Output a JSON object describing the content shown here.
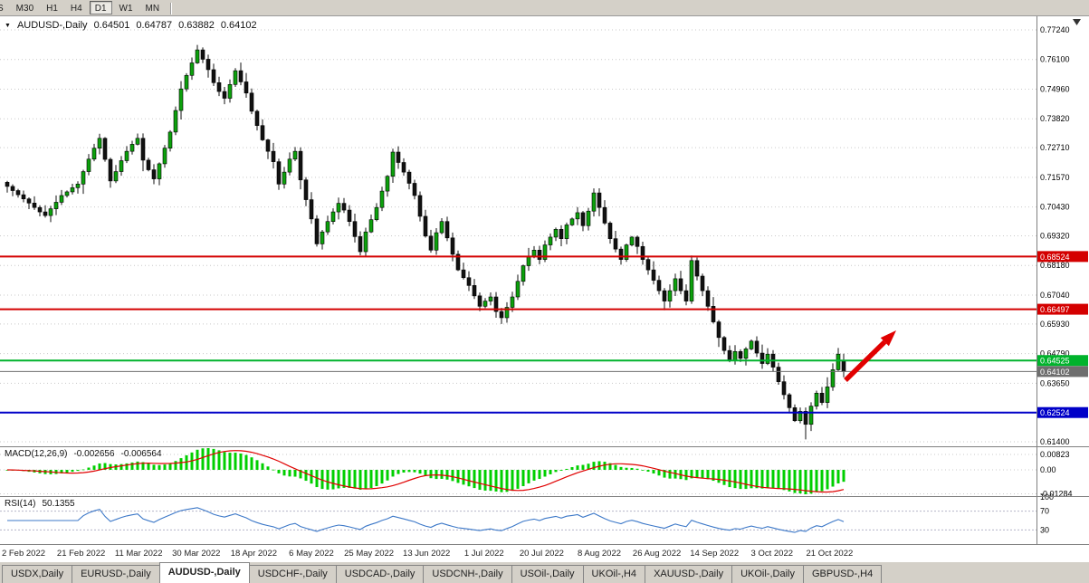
{
  "toolbar": {
    "timeframes": [
      "S",
      "M30",
      "H1",
      "H4",
      "D1",
      "W1",
      "MN"
    ],
    "active_timeframe": "D1"
  },
  "chart": {
    "title": {
      "marker_icon": "▼",
      "symbol": "AUDUSD-,Daily",
      "open": "0.64501",
      "high": "0.64787",
      "low": "0.63882",
      "close": "0.64102"
    },
    "price_axis": [
      "0.77240",
      "0.76100",
      "0.74960",
      "0.73820",
      "0.72710",
      "0.71570",
      "0.70430",
      "0.69320",
      "0.68180",
      "0.67040",
      "0.65930",
      "0.64790",
      "0.63650",
      "0.62510",
      "0.61400"
    ],
    "time_axis": [
      "2 Feb 2022",
      "21 Feb 2022",
      "11 Mar 2022",
      "30 Mar 2022",
      "18 Apr 2022",
      "6 May 2022",
      "25 May 2022",
      "13 Jun 2022",
      "1 Jul 2022",
      "20 Jul 2022",
      "8 Aug 2022",
      "26 Aug 2022",
      "14 Sep 2022",
      "3 Oct 2022",
      "21 Oct 2022"
    ],
    "levels": [
      {
        "label": "0.68524",
        "price": 0.68524,
        "color": "#d40000",
        "tag_text": "#ffffff",
        "is_current_price": false
      },
      {
        "label": "0.66497",
        "price": 0.66497,
        "color": "#d40000",
        "tag_text": "#ffffff",
        "is_current_price": false
      },
      {
        "label": "0.64525",
        "price": 0.64525,
        "color": "#00b32c",
        "tag_text": "#ffffff",
        "is_current_price": false
      },
      {
        "label": "0.64102",
        "price": 0.64102,
        "color": "#6e6e6e",
        "tag_text": "#ffffff",
        "is_current_price": true
      },
      {
        "label": "0.62524",
        "price": 0.62524,
        "color": "#0000c8",
        "tag_text": "#ffffff",
        "is_current_price": false
      }
    ],
    "macd": {
      "label": "MACD(12,26,9)",
      "value_main": "-0.002656",
      "value_signal": "-0.006564",
      "axis": [
        "0.00823",
        "0.00",
        "-0.01284"
      ]
    },
    "rsi": {
      "label": "RSI(14)",
      "value": "50.1355",
      "axis": [
        "100",
        "70",
        "30"
      ],
      "levels": [
        70,
        30
      ]
    },
    "annotation_arrow": {
      "color": "#e10000"
    }
  },
  "chart_data": {
    "type": "candlestick",
    "symbol": "AUDUSD",
    "timeframe": "Daily",
    "title": "AUDUSD-,Daily",
    "x_range": [
      "2 Feb 2022",
      "26 Oct 2022"
    ],
    "y_range": [
      0.614,
      0.7724
    ],
    "first_open": 0.7138,
    "closes": [
      0.7122,
      0.7106,
      0.709,
      0.7074,
      0.7058,
      0.7041,
      0.7024,
      0.701,
      0.7036,
      0.7061,
      0.7087,
      0.7101,
      0.7117,
      0.7131,
      0.7179,
      0.7227,
      0.7269,
      0.7307,
      0.7226,
      0.7143,
      0.7179,
      0.7221,
      0.7257,
      0.7284,
      0.7307,
      0.7223,
      0.7186,
      0.7151,
      0.7209,
      0.7269,
      0.7331,
      0.7414,
      0.7497,
      0.7549,
      0.7597,
      0.7647,
      0.7611,
      0.7571,
      0.7521,
      0.7487,
      0.7461,
      0.7514,
      0.7567,
      0.7524,
      0.7481,
      0.7411,
      0.7356,
      0.7301,
      0.7257,
      0.7217,
      0.7131,
      0.7177,
      0.7227,
      0.7257,
      0.7147,
      0.7071,
      0.6997,
      0.6901,
      0.6947,
      0.6987,
      0.7024,
      0.7057,
      0.7031,
      0.6987,
      0.6929,
      0.6871,
      0.6947,
      0.6994,
      0.7041,
      0.7104,
      0.7161,
      0.7254,
      0.7214,
      0.7177,
      0.7134,
      0.7087,
      0.7007,
      0.6931,
      0.6877,
      0.6944,
      0.6987,
      0.6924,
      0.6861,
      0.6801,
      0.6771,
      0.6741,
      0.6701,
      0.6661,
      0.6681,
      0.6697,
      0.6641,
      0.6617,
      0.6657,
      0.6697,
      0.6757,
      0.6817,
      0.6851,
      0.6877,
      0.6841,
      0.6897,
      0.6927,
      0.6957,
      0.6921,
      0.6974,
      0.6997,
      0.7021,
      0.6971,
      0.7027,
      0.7097,
      0.7041,
      0.6981,
      0.6921,
      0.6881,
      0.6841,
      0.6897,
      0.6927,
      0.6891,
      0.6841,
      0.6801,
      0.6761,
      0.6721,
      0.6681,
      0.6721,
      0.6767,
      0.6721,
      0.6681,
      0.6837,
      0.6777,
      0.6721,
      0.6661,
      0.6601,
      0.6541,
      0.6491,
      0.6451,
      0.6487,
      0.6461,
      0.6497,
      0.6527,
      0.6481,
      0.6441,
      0.6477,
      0.6427,
      0.6371,
      0.6321,
      0.6271,
      0.6221,
      0.6257,
      0.6207,
      0.6277,
      0.6327,
      0.6291,
      0.6351,
      0.6417,
      0.6477,
      0.641
    ],
    "last_candle": {
      "open": 0.64501,
      "high": 0.64787,
      "low": 0.63882,
      "close": 0.64102
    },
    "indicators": [
      {
        "name": "MACD",
        "params": [
          12,
          26,
          9
        ],
        "current": [
          -0.002656,
          -0.006564
        ]
      },
      {
        "name": "RSI",
        "params": [
          14
        ],
        "current": 50.1355
      }
    ],
    "colors": {
      "bull": "#0ca10c",
      "bear": "#111111",
      "wick": "#111111",
      "grid": "#c9c9c9",
      "macd_hist": "#00cf00",
      "macd_signal": "#e00000",
      "rsi_line": "#3c78c8",
      "axis_text": "#000000"
    },
    "legend_position": "none",
    "grid": "horizontal-dotted"
  },
  "bottom_tabs": {
    "tabs": [
      "USDX,Daily",
      "EURUSD-,Daily",
      "AUDUSD-,Daily",
      "USDCHF-,Daily",
      "USDCAD-,Daily",
      "USDCNH-,Daily",
      "USOil-,Daily",
      "UKOil-,H4",
      "XAUUSD-,Daily",
      "UKOil-,Daily",
      "GBPUSD-,H4"
    ],
    "active": "AUDUSD-,Daily"
  }
}
